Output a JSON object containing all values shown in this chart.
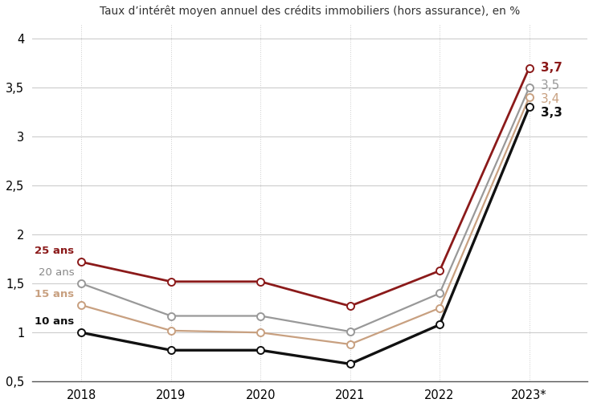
{
  "title": "Taux d’intérêt moyen annuel des crédits immobiliers (hors assurance), en %",
  "x_labels": [
    "2018",
    "2019",
    "2020",
    "2021",
    "2022",
    "2023*"
  ],
  "x_values": [
    0,
    1,
    2,
    3,
    4,
    5
  ],
  "series": [
    {
      "label": "25 ans",
      "color": "#8B1A1A",
      "linewidth": 2.0,
      "values": [
        1.72,
        1.52,
        1.52,
        1.27,
        1.63,
        3.7
      ]
    },
    {
      "label": "20 ans",
      "color": "#999999",
      "linewidth": 1.6,
      "values": [
        1.5,
        1.17,
        1.17,
        1.01,
        1.4,
        3.5
      ]
    },
    {
      "label": "15 ans",
      "color": "#C8A080",
      "linewidth": 1.6,
      "values": [
        1.28,
        1.02,
        1.0,
        0.88,
        1.25,
        3.4
      ]
    },
    {
      "label": "10 ans",
      "color": "#111111",
      "linewidth": 2.4,
      "values": [
        1.0,
        0.82,
        0.82,
        0.68,
        1.08,
        3.3
      ]
    }
  ],
  "end_labels": [
    "3,7",
    "3,5",
    "3,4",
    "3,3"
  ],
  "end_label_colors": [
    "#8B1A1A",
    "#999999",
    "#C8A080",
    "#111111"
  ],
  "end_label_bold": [
    true,
    false,
    false,
    true
  ],
  "legend_labels": [
    "25 ans",
    "20 ans",
    "15 ans",
    "10 ans"
  ],
  "legend_colors": [
    "#8B1A1A",
    "#888888",
    "#C8A080",
    "#111111"
  ],
  "legend_bold": [
    true,
    false,
    true,
    true
  ],
  "ylim": [
    0.5,
    4.15
  ],
  "yticks": [
    0.5,
    1.0,
    1.5,
    2.0,
    2.5,
    3.0,
    3.5,
    4.0
  ],
  "ytick_labels": [
    "0,5",
    "1",
    "1,5",
    "2",
    "2,5",
    "3",
    "3,5",
    "4"
  ],
  "background_color": "#FFFFFF",
  "grid_color": "#CCCCCC"
}
